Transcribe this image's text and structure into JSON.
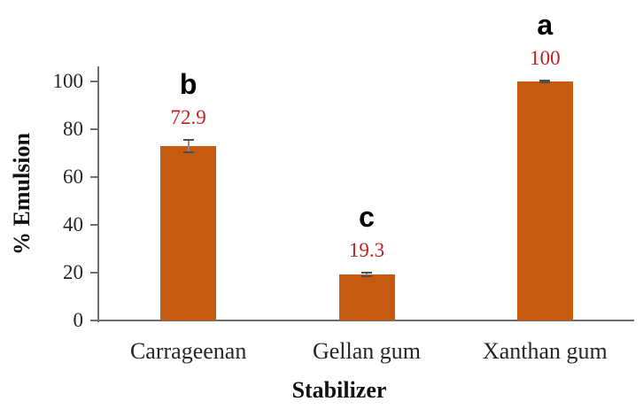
{
  "figure": {
    "background": "#FFFFFF"
  },
  "chart_data": {
    "type": "bar",
    "title": "",
    "categories": [
      "Carrageenan",
      "Gellan gum",
      "Xanthan gum"
    ],
    "values": [
      72.9,
      19.3,
      100
    ],
    "value_labels": [
      "72.9",
      "19.3",
      "100"
    ],
    "significance_letters": [
      "b",
      "c",
      "a"
    ],
    "error_bars_pct": [
      2.5,
      0.6,
      0.5
    ],
    "xlabel": "Stabilizer",
    "ylabel": "% Emulsion",
    "ylim": [
      0,
      106
    ],
    "yticks": [
      0,
      20,
      40,
      60,
      80,
      100
    ],
    "grid": false,
    "legend": "none",
    "colors": {
      "bar": "#C55A11",
      "value_label": "#C32222",
      "significance_letter": "#000000",
      "axis_line": "#6E6E6E",
      "tick_text": "#262626",
      "error_whisker": "#8C8C8C",
      "error_cap": "#4F4F4F"
    }
  }
}
